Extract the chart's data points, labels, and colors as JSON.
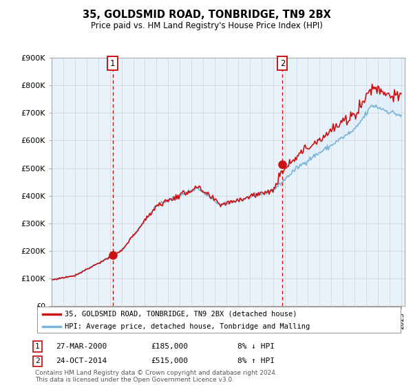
{
  "title": "35, GOLDSMID ROAD, TONBRIDGE, TN9 2BX",
  "subtitle": "Price paid vs. HM Land Registry's House Price Index (HPI)",
  "ylim": [
    0,
    900000
  ],
  "yticks": [
    0,
    100000,
    200000,
    300000,
    400000,
    500000,
    600000,
    700000,
    800000,
    900000
  ],
  "ytick_labels": [
    "£0",
    "£100K",
    "£200K",
    "£300K",
    "£400K",
    "£500K",
    "£600K",
    "£700K",
    "£800K",
    "£900K"
  ],
  "hpi_color": "#7ab4d8",
  "price_color": "#cc1111",
  "fill_color": "#daeaf5",
  "marker_color": "#cc1111",
  "grid_color": "#cccccc",
  "chart_bg": "#e8f2fa",
  "bg_color": "#ffffff",
  "sale1_date": "27-MAR-2000",
  "sale1_price": "£185,000",
  "sale1_hpi": "8% ↓ HPI",
  "sale2_date": "24-OCT-2014",
  "sale2_price": "£515,000",
  "sale2_hpi": "8% ↑ HPI",
  "legend_line1": "35, GOLDSMID ROAD, TONBRIDGE, TN9 2BX (detached house)",
  "legend_line2": "HPI: Average price, detached house, Tonbridge and Malling",
  "footer": "Contains HM Land Registry data © Crown copyright and database right 2024.\nThis data is licensed under the Open Government Licence v3.0.",
  "sale1_year": 2000.23,
  "sale1_value": 185000,
  "sale2_year": 2014.81,
  "sale2_value": 515000
}
